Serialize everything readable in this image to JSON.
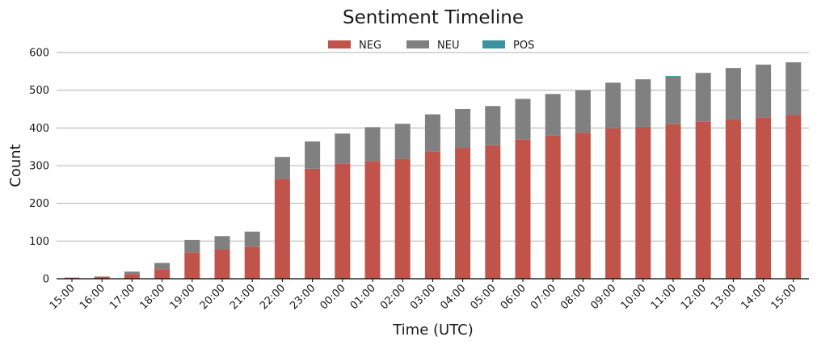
{
  "chart_data": {
    "type": "bar",
    "stacked": true,
    "title": "Sentiment Timeline",
    "xlabel": "Time (UTC)",
    "ylabel": "Count",
    "ylim": [
      0,
      600
    ],
    "yticks": [
      0,
      100,
      200,
      300,
      400,
      500,
      600
    ],
    "grid": "horizontal",
    "legend_position": "top-center",
    "categories": [
      "15:00",
      "16:00",
      "17:00",
      "18:00",
      "19:00",
      "20:00",
      "21:00",
      "22:00",
      "23:00",
      "00:00",
      "01:00",
      "02:00",
      "03:00",
      "04:00",
      "05:00",
      "06:00",
      "07:00",
      "08:00",
      "09:00",
      "10:00",
      "11:00",
      "12:00",
      "13:00",
      "14:00",
      "15:00"
    ],
    "series": [
      {
        "name": "NEG",
        "color": "#c0544a",
        "values": [
          2,
          5,
          12,
          25,
          70,
          78,
          85,
          265,
          292,
          305,
          312,
          318,
          338,
          347,
          354,
          369,
          380,
          387,
          399,
          403,
          410,
          416,
          422,
          428,
          434
        ]
      },
      {
        "name": "NEU",
        "color": "#808080",
        "values": [
          1,
          1,
          7,
          17,
          33,
          35,
          40,
          58,
          72,
          80,
          90,
          93,
          98,
          103,
          104,
          108,
          110,
          113,
          121,
          126,
          126,
          130,
          137,
          140,
          140
        ]
      },
      {
        "name": "POS",
        "color": "#3a93a0",
        "values": [
          0,
          0,
          0,
          0,
          0,
          0,
          0,
          0,
          0,
          0,
          0,
          0,
          0,
          0,
          0,
          0,
          0,
          0,
          0,
          0,
          2,
          0,
          0,
          0,
          0
        ]
      }
    ]
  }
}
